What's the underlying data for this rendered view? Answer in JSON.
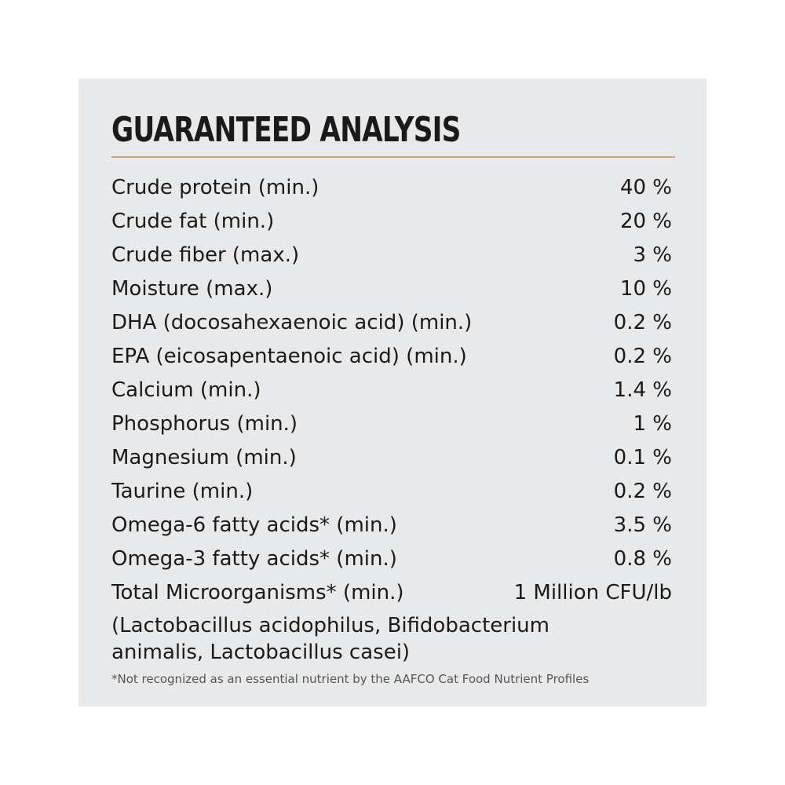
{
  "title": "GUARANTEED ANALYSIS",
  "table": {
    "rows": [
      [
        "Crude protein (min.)",
        "40 %"
      ],
      [
        "Crude fat (min.)",
        "20 %"
      ],
      [
        "Crude fiber (max.)",
        "3 %"
      ],
      [
        "Moisture (max.)",
        "10 %"
      ],
      [
        "DHA (docosahexaenoic acid) (min.)",
        "0.2 %"
      ],
      [
        "EPA (eicosapentaenoic acid) (min.)",
        "0.2 %"
      ],
      [
        "Calcium (min.)",
        "1.4 %"
      ],
      [
        "Phosphorus (min.)",
        "1 %"
      ],
      [
        "Magnesium (min.)",
        "0.1 %"
      ],
      [
        "Taurine (min.)",
        "0.2 %"
      ],
      [
        "Omega-6 fatty acids* (min.)",
        "3.5 %"
      ],
      [
        "Omega-3 fatty acids* (min.)",
        "0.8 %"
      ],
      [
        "Total Microorganisms* (min.)",
        "1 Million CFU/lb"
      ]
    ]
  },
  "note": "(Lactobacillus acidophilus, Bifidobacterium animalis, Lactobacillus casei)",
  "footnote": "*Not recognized as an essential nutrient by the AAFCO Cat Food Nutrient Profiles"
}
